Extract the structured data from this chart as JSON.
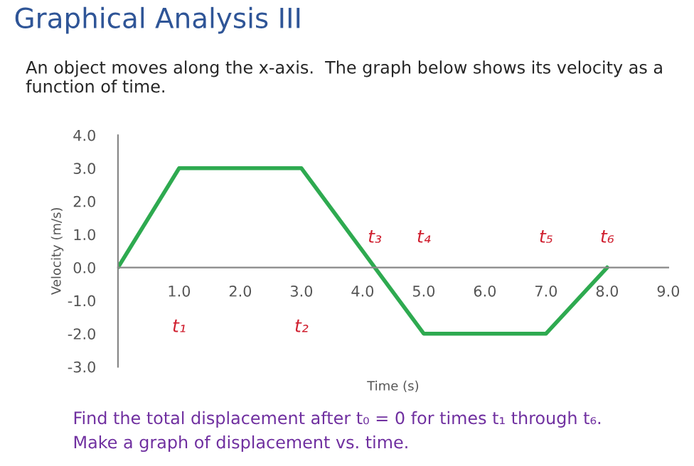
{
  "chart_data": {
    "type": "line",
    "title": "Graphical Analysis III",
    "subtitle": "An object moves along the x-axis.  The graph below shows its velocity as a function of time.",
    "xlabel": "Time (s)",
    "ylabel": "Velocity (m/s)",
    "x": [
      0,
      1,
      3,
      4.2,
      5,
      7,
      8
    ],
    "series": [
      {
        "color": "#2eaa50",
        "values": [
          0,
          3,
          3,
          0,
          -2,
          -2,
          0
        ]
      }
    ],
    "xlim": [
      0,
      9
    ],
    "ylim": [
      -3,
      4
    ],
    "xticks": [
      {
        "value": 1,
        "label": "1.0"
      },
      {
        "value": 2,
        "label": "2.0"
      },
      {
        "value": 3,
        "label": "3.0"
      },
      {
        "value": 4,
        "label": "4.0"
      },
      {
        "value": 5,
        "label": "5.0"
      },
      {
        "value": 6,
        "label": "6.0"
      },
      {
        "value": 7,
        "label": "7.0"
      },
      {
        "value": 8,
        "label": "8.0"
      },
      {
        "value": 9,
        "label": "9.0"
      }
    ],
    "yticks": [
      {
        "value": -3,
        "label": "-3.0"
      },
      {
        "value": -2,
        "label": "-2.0"
      },
      {
        "value": -1,
        "label": "-1.0"
      },
      {
        "value": 0,
        "label": "0.0"
      },
      {
        "value": 1,
        "label": "1.0"
      },
      {
        "value": 2,
        "label": "2.0"
      },
      {
        "value": 3,
        "label": "3.0"
      },
      {
        "value": 4,
        "label": "4.0"
      }
    ],
    "grid": false,
    "legend": false,
    "marker": "none",
    "line_style": "solid",
    "annotations": [
      "t₁",
      "t₂",
      "t₃",
      "t₄",
      "t₅",
      "t₆",
      "Find the total displacement after t₀ = 0 for times t₁ through t₆.",
      "Make a graph of displacement vs. time."
    ]
  }
}
